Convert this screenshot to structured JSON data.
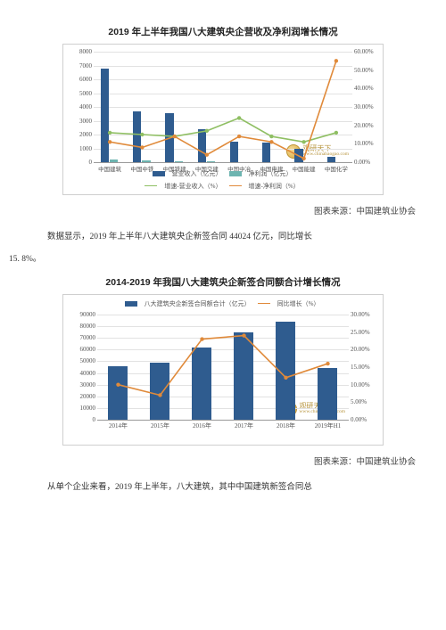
{
  "chart1": {
    "title": "2019 年上半年我国八大建筑央企营收及净利润增长情况",
    "type": "bar+line",
    "background_color": "#ffffff",
    "grid_color": "#e2e2e2",
    "categories": [
      "中国建筑",
      "中国中铁",
      "中国铁建",
      "中国交建",
      "中国中冶",
      "中国电建",
      "中国能建",
      "中国化学"
    ],
    "y_left": {
      "min": 0,
      "max": 8000,
      "step": 1000,
      "label_fontsize": 7
    },
    "y_right": {
      "min": 0,
      "max": 0.6,
      "step": 0.1,
      "format": "percent",
      "label_fontsize": 7
    },
    "series": [
      {
        "name": "营业收入（亿元）",
        "kind": "bar",
        "color": "#2f5c8f",
        "values": [
          6800,
          3700,
          3550,
          2400,
          1500,
          1450,
          1000,
          400
        ]
      },
      {
        "name": "净利润（亿元）",
        "kind": "bar",
        "color": "#6db4b0",
        "values": [
          210,
          110,
          95,
          80,
          30,
          30,
          25,
          10
        ]
      },
      {
        "name": "增速-营业收入（%）",
        "kind": "line",
        "color": "#8fbf63",
        "values": [
          0.16,
          0.15,
          0.14,
          0.17,
          0.24,
          0.14,
          0.11,
          0.16
        ]
      },
      {
        "name": "增速-净利润（%）",
        "kind": "line",
        "color": "#e08a3a",
        "values": [
          0.11,
          0.08,
          0.14,
          0.04,
          0.14,
          0.11,
          0.02,
          0.55
        ]
      }
    ],
    "legend_fontsize": 7,
    "watermark": {
      "brand": "观研天下",
      "url": "www.chinabaogao.com"
    },
    "source_label": "图表来源：中国建筑业协会"
  },
  "para1_a": "数据显示，2019 年上半年八大建筑央企新签合同 44024 亿元，同比增长",
  "para1_b": "15. 8%。",
  "chart2": {
    "title": "2014-2019 年我国八大建筑央企新签合同额合计增长情况",
    "type": "bar+line",
    "background_color": "#ffffff",
    "grid_color": "#e2e2e2",
    "categories": [
      "2014年",
      "2015年",
      "2016年",
      "2017年",
      "2018年",
      "2019年H1"
    ],
    "y_left": {
      "min": 0,
      "max": 90000,
      "step": 10000,
      "label_fontsize": 7
    },
    "y_right": {
      "min": 0,
      "max": 0.3,
      "step": 0.05,
      "format": "percent",
      "label_fontsize": 7
    },
    "series": [
      {
        "name": "八大建筑央企新签合同额合计（亿元）",
        "kind": "bar",
        "color": "#2f5c8f",
        "values": [
          46000,
          49000,
          62000,
          75000,
          84000,
          44000
        ]
      },
      {
        "name": "同比增长（%）",
        "kind": "line",
        "color": "#e08a3a",
        "values": [
          0.1,
          0.07,
          0.23,
          0.24,
          0.12,
          0.16
        ]
      }
    ],
    "bar_width": 0.55,
    "legend_fontsize": 7,
    "watermark": {
      "brand": "观研天下",
      "url": "www.chinabaogao.com"
    },
    "source_label": "图表来源：中国建筑业协会"
  },
  "para2": "从单个企业来看，2019 年上半年，八大建筑，其中中国建筑新签合同总"
}
